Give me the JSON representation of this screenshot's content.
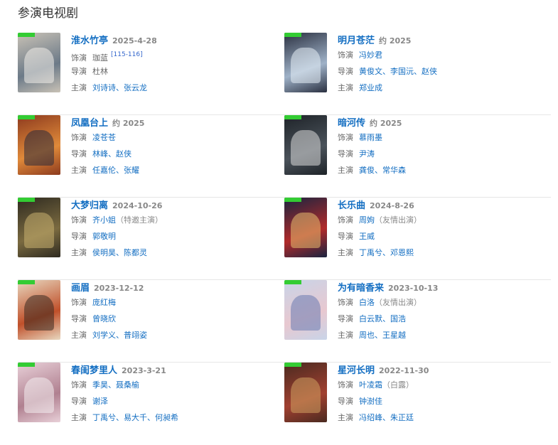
{
  "section_title": "参演电视剧",
  "labels": {
    "role": "饰演",
    "director": "导演",
    "stars": "主演"
  },
  "colors": {
    "link": "#136ec2",
    "date": "#888888",
    "divider": "#e6e6e6"
  },
  "dramas": [
    {
      "title": "淮水竹亭",
      "date": "2025-4-28",
      "role": "珈蓝",
      "role_plain": true,
      "ref": "[115-116]",
      "director": "杜林",
      "director_plain": true,
      "stars": "刘诗诗、张云龙",
      "poster": [
        "#c9c2b6",
        "#6c7a88",
        "#f2efe9"
      ]
    },
    {
      "title": "明月苍茫",
      "date": "约 2025",
      "role": "冯妙君",
      "director": "黄俊文、李国沅、赵侠",
      "stars": "郑业成",
      "poster": [
        "#2a3040",
        "#9fb2c8",
        "#e6eef5"
      ]
    },
    {
      "title": "凤凰台上",
      "date": "约 2025",
      "role": "凌苍苍",
      "director": "林峰、赵侠",
      "stars": "任嘉伦、张耀",
      "poster": [
        "#8c3a1e",
        "#e08a3a",
        "#2a2a3a"
      ]
    },
    {
      "title": "暗河传",
      "date": "约 2025",
      "role": "慕雨墨",
      "director": "尹涛",
      "stars": "龚俊、常华森",
      "poster": [
        "#1e2328",
        "#4a525a",
        "#d8d8d8"
      ]
    },
    {
      "title": "大梦归离",
      "date": "2024-10-26",
      "role": "齐小姐",
      "role_note": "（特邀主演）",
      "director": "郭敬明",
      "stars": "侯明昊、陈都灵",
      "poster": [
        "#2e2a20",
        "#7a6a40",
        "#c8b070"
      ]
    },
    {
      "title": "长乐曲",
      "date": "2024-8-26",
      "role": "周姁",
      "role_note": "（友情出演）",
      "director": "王威",
      "stars": "丁禹兮、邓恩熙",
      "poster": [
        "#1a2440",
        "#b02a2a",
        "#e8c070"
      ]
    },
    {
      "title": "画眉",
      "date": "2023-12-12",
      "role": "庞红梅",
      "director": "曾晓欣",
      "stars": "刘学义、普翊姿",
      "poster": [
        "#e8d8c0",
        "#c0502a",
        "#3a2a20"
      ]
    },
    {
      "title": "为有暗香来",
      "date": "2023-10-13",
      "role": "白洛",
      "role_note": "（友情出演）",
      "director": "白云默、国浩",
      "stars": "周也、王星越",
      "poster": [
        "#c8d4e8",
        "#e8c8d0",
        "#6a7ab0"
      ]
    },
    {
      "title": "春闺梦里人",
      "date": "2023-3-21",
      "role": "季昊、聂桑榆",
      "director": "谢泽",
      "stars": "丁禹兮、易大千、何昶希",
      "poster": [
        "#e8d0d8",
        "#b08090",
        "#f4eef0"
      ]
    },
    {
      "title": "星河长明",
      "date": "2022-11-30",
      "role": "叶凌霜",
      "role_note": "（白露）",
      "director": "钟澍佳",
      "stars": "冯绍峰、朱正廷",
      "poster": [
        "#4a2a20",
        "#a04030",
        "#d0a060"
      ]
    }
  ]
}
